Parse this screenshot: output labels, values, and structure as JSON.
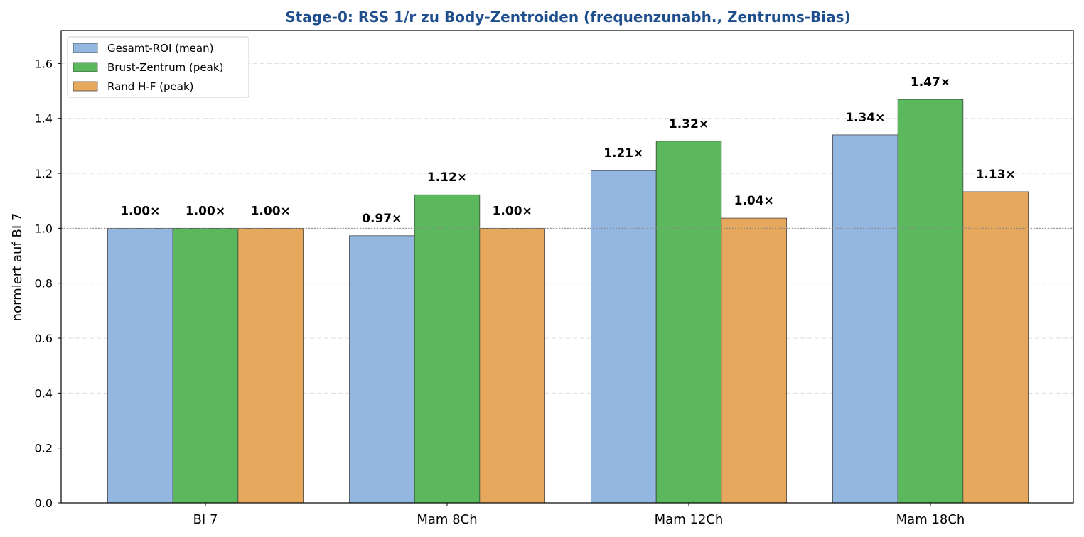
{
  "chart_data": {
    "type": "bar",
    "title": "Stage-0: RSS 1/r zu Body-Zentroiden (frequenzunabh., Zentrums-Bias)",
    "title_color": "#1f4e8c",
    "xlabel": "",
    "ylabel": "normiert auf BI 7",
    "ylim": [
      0,
      1.72
    ],
    "yticks": [
      0.0,
      0.2,
      0.4,
      0.6,
      0.8,
      1.0,
      1.2,
      1.4,
      1.6
    ],
    "ytick_labels": [
      "0.0",
      "0.2",
      "0.4",
      "0.6",
      "0.8",
      "1.0",
      "1.2",
      "1.4",
      "1.6"
    ],
    "grid": true,
    "reference_line": 1.0,
    "legend_position": "top-left",
    "categories": [
      "BI 7",
      "Mam 8Ch",
      "Mam 12Ch",
      "Mam 18Ch"
    ],
    "series": [
      {
        "name": "Gesamt-ROI (mean)",
        "color": "#93b7e0",
        "values": [
          1.0,
          0.973,
          1.21,
          1.34
        ],
        "labels": [
          "1.00×",
          "0.97×",
          "1.21×",
          "1.34×"
        ]
      },
      {
        "name": "Brust-Zentrum (peak)",
        "color": "#5cb85c",
        "values": [
          1.0,
          1.122,
          1.317,
          1.469
        ],
        "labels": [
          "1.00×",
          "1.12×",
          "1.32×",
          "1.47×"
        ]
      },
      {
        "name": "Rand H-F (peak)",
        "color": "#e5a85c",
        "values": [
          1.0,
          1.0,
          1.037,
          1.133
        ],
        "labels": [
          "1.00×",
          "1.00×",
          "1.04×",
          "1.13×"
        ]
      }
    ]
  }
}
